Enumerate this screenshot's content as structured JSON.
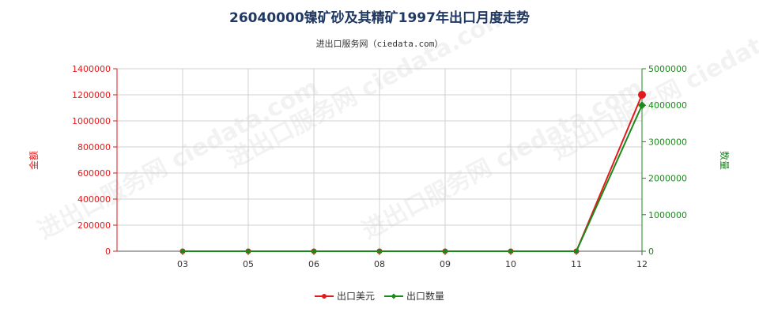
{
  "chart_data": {
    "type": "line",
    "title": "26040000镍矿砂及其精矿1997年出口月度走势",
    "subtitle": "进出口服务网（ciedata.com）",
    "watermark": "进出口服务网 ciedata.com",
    "y_left_label": "金额",
    "y_right_label": "数量",
    "categories": [
      "03",
      "05",
      "06",
      "08",
      "09",
      "10",
      "11",
      "12"
    ],
    "y_left_range": [
      0,
      1400000
    ],
    "y_left_ticks": [
      "0",
      "200000",
      "400000",
      "600000",
      "800000",
      "1000000",
      "1200000",
      "1400000"
    ],
    "y_right_range": [
      0,
      5000000
    ],
    "y_right_ticks": [
      "0",
      "1000000",
      "2000000",
      "3000000",
      "4000000",
      "5000000"
    ],
    "grid": true,
    "legend_position": "bottom",
    "series": [
      {
        "name": "出口美元",
        "axis": "left",
        "color": "#e31a1c",
        "marker": "circle",
        "values": [
          0,
          0,
          0,
          0,
          0,
          0,
          0,
          1200000
        ]
      },
      {
        "name": "出口数量",
        "axis": "right",
        "color": "#1a8a1a",
        "marker": "diamond",
        "values": [
          0,
          0,
          0,
          0,
          0,
          0,
          0,
          4000000
        ]
      }
    ]
  }
}
